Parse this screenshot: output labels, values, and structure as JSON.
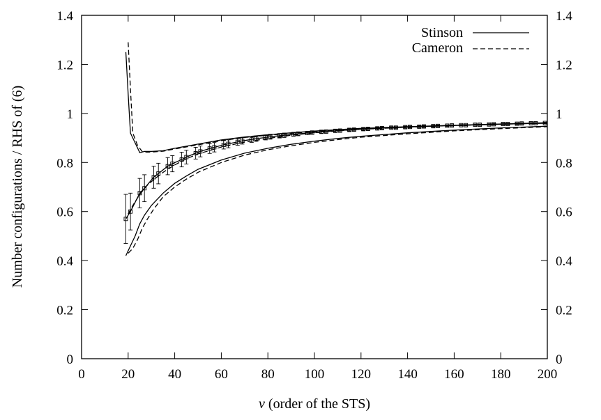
{
  "chart_data": {
    "type": "line",
    "title": "",
    "xlabel_var": "v",
    "xlabel_rest": " (order of the STS)",
    "ylabel": "Number configurations / RHS of (6)",
    "xlim": [
      0,
      200
    ],
    "ylim": [
      0,
      1.4
    ],
    "x_ticks": [
      "0",
      "20",
      "40",
      "60",
      "80",
      "100",
      "120",
      "140",
      "160",
      "180",
      "200"
    ],
    "y_ticks": [
      "0",
      "0.2",
      "0.4",
      "0.6",
      "0.8",
      "1",
      "1.2",
      "1.4"
    ],
    "y2_ticks": [
      "0",
      "0.2",
      "0.4",
      "0.6",
      "0.8",
      "1",
      "1.2",
      "1.4"
    ],
    "grid": false,
    "legend_position": "top-right",
    "series": [
      {
        "name": "Stinson",
        "style": "solid",
        "x": [
          19,
          21,
          25,
          27,
          31,
          33,
          37,
          39,
          43,
          45,
          49,
          51,
          55,
          57,
          61,
          63,
          67,
          69,
          73,
          75,
          79,
          81,
          85,
          87,
          91,
          93,
          97,
          99,
          103,
          105,
          109,
          111,
          115,
          117,
          121,
          123,
          127,
          129,
          133,
          135,
          139,
          141,
          145,
          147,
          151,
          153,
          157,
          159,
          163,
          165,
          169,
          171,
          175,
          177,
          181,
          183,
          187,
          189,
          193,
          195,
          199
        ],
        "mean": [
          0.57,
          0.6,
          0.675,
          0.695,
          0.74,
          0.755,
          0.785,
          0.795,
          0.812,
          0.822,
          0.838,
          0.845,
          0.857,
          0.862,
          0.872,
          0.876,
          0.884,
          0.888,
          0.894,
          0.897,
          0.902,
          0.905,
          0.909,
          0.911,
          0.915,
          0.917,
          0.92,
          0.922,
          0.925,
          0.926,
          0.929,
          0.93,
          0.933,
          0.934,
          0.936,
          0.937,
          0.939,
          0.94,
          0.942,
          0.942,
          0.944,
          0.945,
          0.946,
          0.947,
          0.948,
          0.949,
          0.95,
          0.951,
          0.952,
          0.952,
          0.954,
          0.954,
          0.955,
          0.956,
          0.957,
          0.957,
          0.958,
          0.959,
          0.96,
          0.96,
          0.961
        ],
        "err": [
          0.1,
          0.075,
          0.06,
          0.055,
          0.045,
          0.042,
          0.035,
          0.033,
          0.03,
          0.028,
          0.024,
          0.022,
          0.02,
          0.019,
          0.017,
          0.016,
          0.014,
          0.013,
          0.012,
          0.011,
          0.01,
          0.01,
          0.009,
          0.009,
          0.008,
          0.008,
          0.007,
          0.007,
          0.006,
          0.006,
          0.006,
          0.006,
          0.005,
          0.005,
          0.005,
          0.005,
          0.005,
          0.005,
          0.004,
          0.004,
          0.004,
          0.004,
          0.004,
          0.004,
          0.004,
          0.004,
          0.003,
          0.003,
          0.003,
          0.003,
          0.003,
          0.003,
          0.003,
          0.003,
          0.003,
          0.003,
          0.003,
          0.003,
          0.003,
          0.003,
          0.003
        ],
        "upper": [
          [
            19,
            1.25
          ],
          [
            20,
            1.08
          ],
          [
            21,
            0.92
          ],
          [
            23,
            0.88
          ],
          [
            25,
            0.84
          ],
          [
            27,
            0.845
          ],
          [
            30,
            0.845
          ],
          [
            35,
            0.848
          ],
          [
            40,
            0.858
          ],
          [
            50,
            0.875
          ],
          [
            60,
            0.892
          ],
          [
            70,
            0.904
          ],
          [
            80,
            0.913
          ],
          [
            90,
            0.921
          ],
          [
            100,
            0.928
          ],
          [
            110,
            0.934
          ],
          [
            120,
            0.939
          ],
          [
            140,
            0.946
          ],
          [
            160,
            0.952
          ],
          [
            180,
            0.957
          ],
          [
            200,
            0.962
          ]
        ],
        "lower": [
          [
            19,
            0.42
          ],
          [
            21,
            0.46
          ],
          [
            23,
            0.5
          ],
          [
            25,
            0.55
          ],
          [
            27,
            0.585
          ],
          [
            30,
            0.625
          ],
          [
            35,
            0.675
          ],
          [
            40,
            0.715
          ],
          [
            45,
            0.745
          ],
          [
            50,
            0.772
          ],
          [
            60,
            0.81
          ],
          [
            70,
            0.838
          ],
          [
            80,
            0.858
          ],
          [
            90,
            0.874
          ],
          [
            100,
            0.887
          ],
          [
            110,
            0.898
          ],
          [
            120,
            0.907
          ],
          [
            140,
            0.921
          ],
          [
            160,
            0.932
          ],
          [
            180,
            0.941
          ],
          [
            200,
            0.948
          ]
        ]
      },
      {
        "name": "Cameron",
        "style": "dashed",
        "upper": [
          [
            20,
            1.29
          ],
          [
            21,
            1.1
          ],
          [
            22,
            0.92
          ],
          [
            24,
            0.87
          ],
          [
            26,
            0.845
          ],
          [
            28,
            0.842
          ],
          [
            31,
            0.843
          ],
          [
            35,
            0.846
          ],
          [
            40,
            0.855
          ],
          [
            50,
            0.872
          ],
          [
            60,
            0.889
          ],
          [
            70,
            0.902
          ],
          [
            80,
            0.911
          ],
          [
            90,
            0.919
          ],
          [
            100,
            0.926
          ],
          [
            110,
            0.932
          ],
          [
            120,
            0.937
          ],
          [
            140,
            0.945
          ],
          [
            160,
            0.951
          ],
          [
            180,
            0.956
          ],
          [
            200,
            0.961
          ]
        ],
        "lower": [
          [
            20,
            0.43
          ],
          [
            22,
            0.45
          ],
          [
            24,
            0.485
          ],
          [
            26,
            0.53
          ],
          [
            28,
            0.565
          ],
          [
            31,
            0.61
          ],
          [
            35,
            0.66
          ],
          [
            40,
            0.7
          ],
          [
            45,
            0.732
          ],
          [
            50,
            0.76
          ],
          [
            60,
            0.8
          ],
          [
            70,
            0.83
          ],
          [
            80,
            0.852
          ],
          [
            90,
            0.868
          ],
          [
            100,
            0.882
          ],
          [
            110,
            0.893
          ],
          [
            120,
            0.903
          ],
          [
            140,
            0.917
          ],
          [
            160,
            0.929
          ],
          [
            180,
            0.938
          ],
          [
            200,
            0.946
          ]
        ],
        "mean": [
          [
            20,
            0.59
          ],
          [
            22,
            0.625
          ],
          [
            25,
            0.67
          ],
          [
            28,
            0.705
          ],
          [
            31,
            0.73
          ],
          [
            35,
            0.76
          ],
          [
            40,
            0.79
          ],
          [
            45,
            0.815
          ],
          [
            50,
            0.835
          ],
          [
            60,
            0.863
          ],
          [
            70,
            0.883
          ],
          [
            80,
            0.898
          ],
          [
            90,
            0.911
          ],
          [
            100,
            0.921
          ],
          [
            110,
            0.929
          ],
          [
            120,
            0.935
          ],
          [
            140,
            0.944
          ],
          [
            160,
            0.951
          ],
          [
            180,
            0.956
          ],
          [
            200,
            0.96
          ]
        ]
      }
    ]
  }
}
